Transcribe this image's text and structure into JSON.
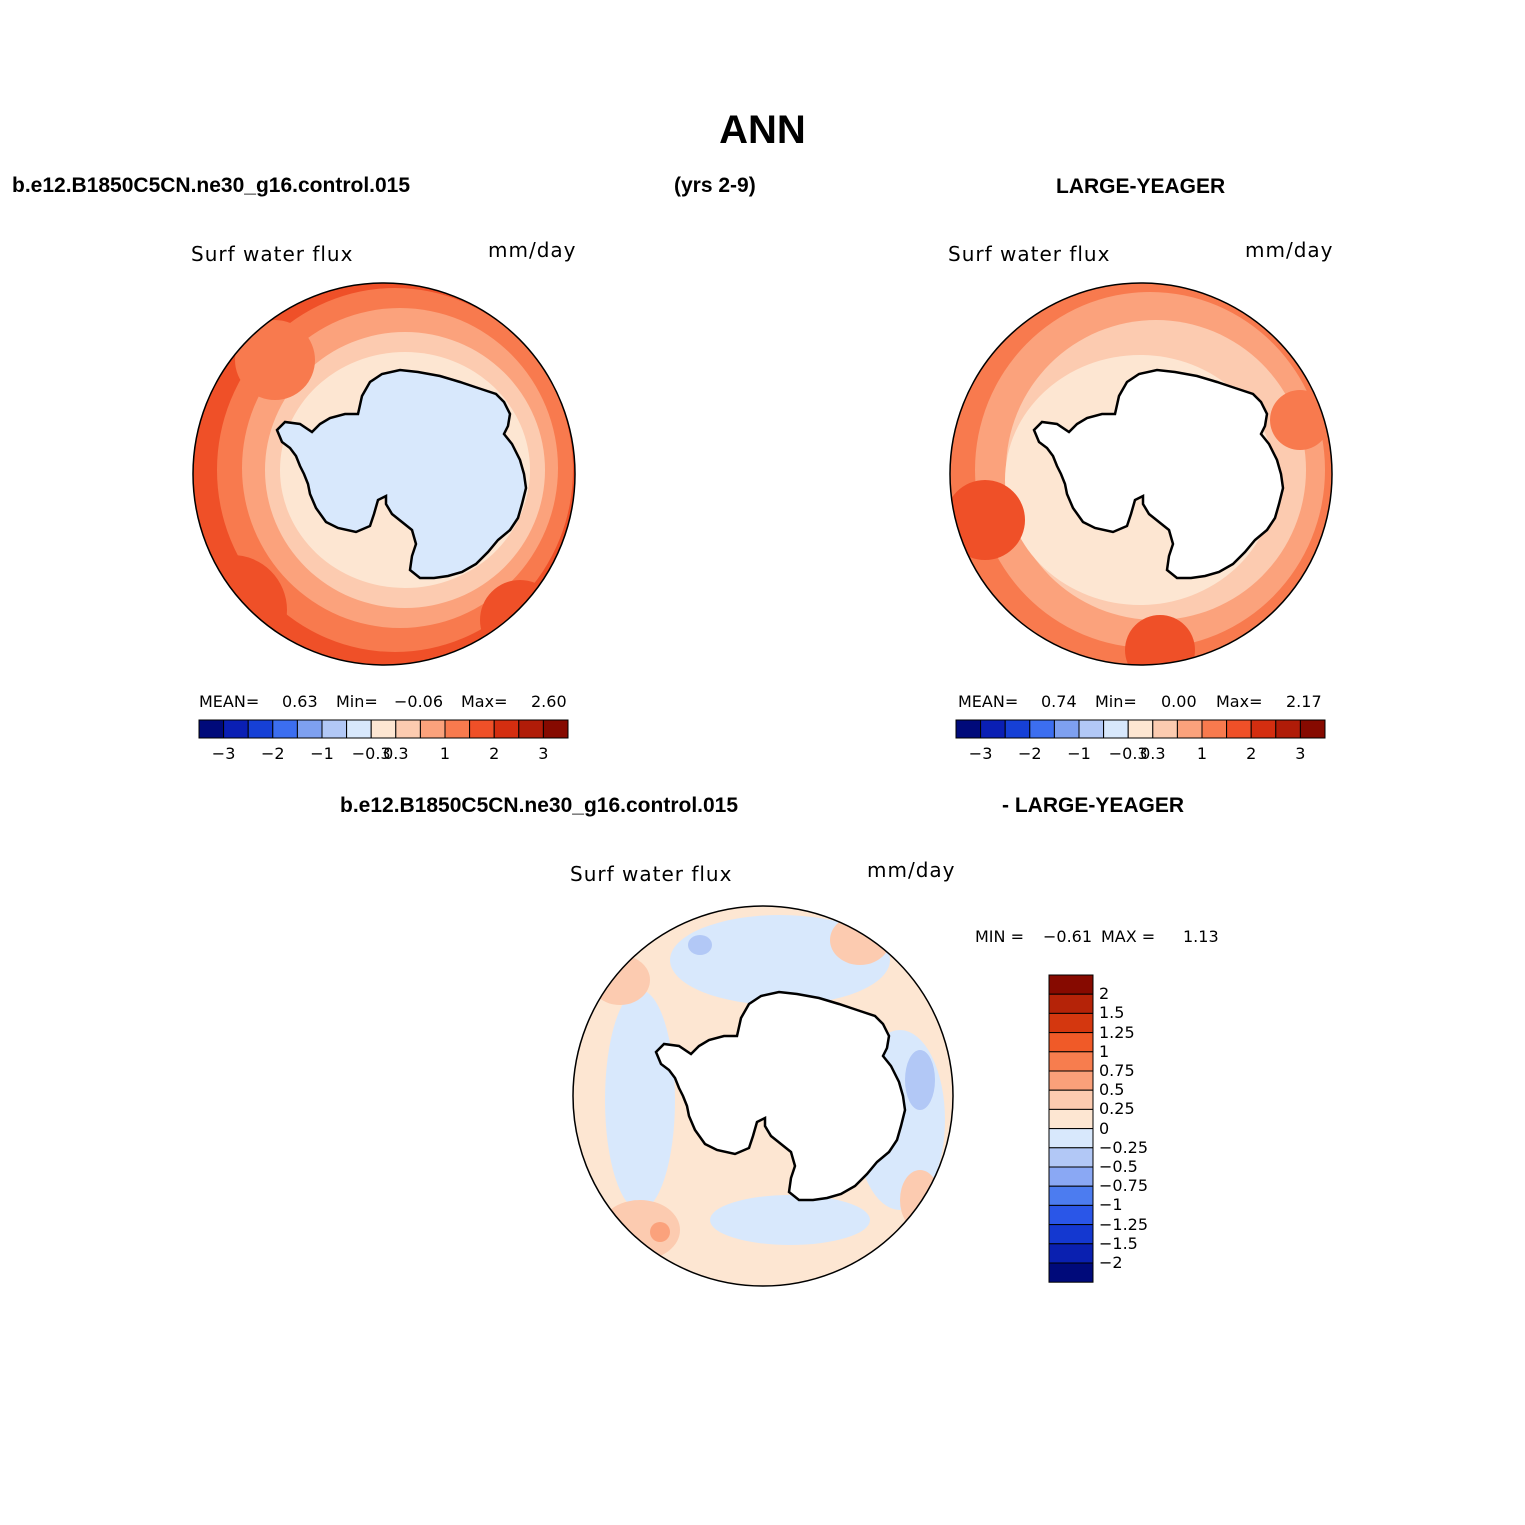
{
  "header": {
    "title": "ANN",
    "case_left": "b.e12.B1850C5CN.ne30_g16.control.015",
    "years": "(yrs 2-9)",
    "case_right": "LARGE-YEAGER",
    "diff_left": "b.e12.B1850C5CN.ne30_g16.control.015",
    "diff_right": "- LARGE-YEAGER"
  },
  "panels": [
    {
      "id": "model",
      "variable": "Surf water flux",
      "units": "mm/day",
      "mean_label": "MEAN=",
      "mean": "0.63",
      "min_label": "Min=",
      "min": "−0.06",
      "max_label": "Max=",
      "max": "2.60"
    },
    {
      "id": "obs",
      "variable": "Surf water flux",
      "units": "mm/day",
      "mean_label": "MEAN=",
      "mean": "0.74",
      "min_label": "Min=",
      "min": "0.00",
      "max_label": "Max=",
      "max": "2.17"
    },
    {
      "id": "diff",
      "variable": "Surf water flux",
      "units": "mm/day",
      "min_label": "MIN =",
      "min": "−0.61",
      "max_label": "MAX =",
      "max": "1.13"
    }
  ],
  "colorbar_main": {
    "colors": [
      "#000a7a",
      "#0a1fb4",
      "#1640d6",
      "#3c6ef0",
      "#7ea0f0",
      "#b2c8f6",
      "#d8e8fc",
      "#fde6d2",
      "#fccbb0",
      "#fba27c",
      "#f87a4e",
      "#ef5028",
      "#d42e10",
      "#b01c08",
      "#860a00"
    ],
    "ticks": [
      "−3",
      "−2",
      "−1",
      "−0.3",
      "0.3",
      "1",
      "2",
      "3"
    ],
    "tick_boundary_index": [
      1,
      3,
      5,
      7,
      8,
      10,
      12,
      14
    ]
  },
  "colorbar_diff": {
    "colors_top_to_bottom": [
      "#860a00",
      "#b52308",
      "#d4370f",
      "#f05a28",
      "#f77d4e",
      "#faa07a",
      "#fccbb0",
      "#fde6d2",
      "#d8e8fc",
      "#b2c8f6",
      "#8aa8f4",
      "#4c7cf0",
      "#2a56e8",
      "#1438d0",
      "#0a20b0",
      "#000a7a"
    ],
    "ticks": [
      "2",
      "1.5",
      "1.25",
      "1",
      "0.75",
      "0.5",
      "0.25",
      "0",
      "−0.25",
      "−0.5",
      "−0.75",
      "−1",
      "−1.25",
      "−1.5",
      "−2"
    ]
  },
  "map_colors": {
    "continent": "#ffffff",
    "continent_model": "#d8e8fc",
    "near_ice": "#fde6d2",
    "band2": "#fccbb0",
    "band3": "#fba27c",
    "band4": "#f87a4e",
    "band5": "#ef5028",
    "diff_neg": "#d8e8fc",
    "diff_neg2": "#b2c8f6",
    "diff_pos": "#fde6d2",
    "diff_pos2": "#fccbb0",
    "diff_pos3": "#fba27c"
  }
}
